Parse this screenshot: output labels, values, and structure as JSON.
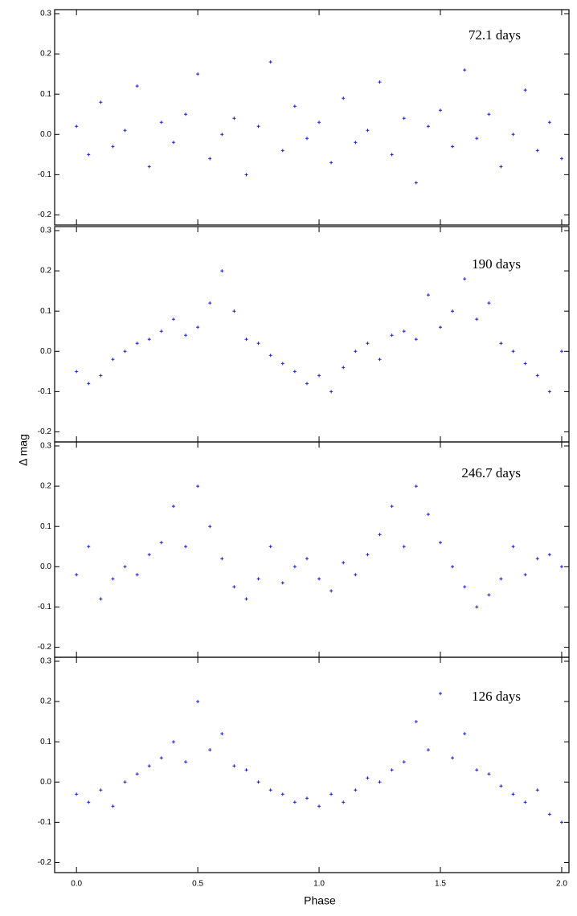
{
  "chart_data": [
    {
      "type": "scatter",
      "annotation": "72.1 days",
      "color": "#1a1adc",
      "x": [
        0,
        0.05,
        0.1,
        0.15,
        0.2,
        0.25,
        0.3,
        0.35,
        0.4,
        0.45,
        0.5,
        0.55,
        0.6,
        0.65,
        0.7,
        0.75,
        0.8,
        0.85,
        0.9,
        0.95,
        1.0,
        1.05,
        1.1,
        1.15,
        1.2,
        1.25,
        1.3,
        1.35,
        1.4,
        1.45,
        1.5,
        1.55,
        1.6,
        1.65,
        1.7,
        1.75,
        1.8,
        1.85,
        1.9,
        1.95,
        2.0
      ],
      "y": [
        0.02,
        -0.05,
        0.08,
        -0.03,
        0.01,
        0.12,
        -0.08,
        0.03,
        -0.02,
        0.05,
        0.15,
        -0.06,
        0.0,
        0.04,
        -0.1,
        0.02,
        0.18,
        -0.04,
        0.07,
        -0.01,
        0.03,
        -0.07,
        0.09,
        -0.02,
        0.01,
        0.13,
        -0.05,
        0.04,
        -0.12,
        0.02,
        0.06,
        -0.03,
        0.16,
        -0.01,
        0.05,
        -0.08,
        0.0,
        0.11,
        -0.04,
        0.03,
        -0.06
      ],
      "xlim": [
        -0.09,
        2.03
      ],
      "ylim": [
        -0.225,
        0.31
      ],
      "yticks": [
        0.3,
        0.2,
        0.1,
        {
          "value": 0,
          "label": "0.0"
        },
        -0.1,
        -0.2
      ]
    },
    {
      "type": "scatter",
      "annotation": "190 days",
      "color": "#1a1adc",
      "x": [
        0,
        0.05,
        0.1,
        0.15,
        0.2,
        0.25,
        0.3,
        0.35,
        0.4,
        0.45,
        0.5,
        0.55,
        0.6,
        0.65,
        0.7,
        0.75,
        0.8,
        0.85,
        0.9,
        0.95,
        1.0,
        1.05,
        1.1,
        1.15,
        1.2,
        1.25,
        1.3,
        1.35,
        1.4,
        1.45,
        1.5,
        1.55,
        1.6,
        1.65,
        1.7,
        1.75,
        1.8,
        1.85,
        1.9,
        1.95,
        2.0
      ],
      "y": [
        -0.05,
        -0.08,
        -0.06,
        -0.02,
        0.0,
        0.02,
        0.03,
        0.05,
        0.08,
        0.04,
        0.06,
        0.12,
        0.2,
        0.1,
        0.03,
        0.02,
        -0.01,
        -0.03,
        -0.05,
        -0.08,
        -0.06,
        -0.1,
        -0.04,
        0.0,
        0.02,
        -0.02,
        0.04,
        0.05,
        0.03,
        0.14,
        0.06,
        0.1,
        0.18,
        0.08,
        0.12,
        0.02,
        0.0,
        -0.03,
        -0.06,
        -0.1,
        0.0
      ],
      "xlim": [
        -0.09,
        2.03
      ],
      "ylim": [
        -0.225,
        0.31
      ],
      "yticks": [
        0.3,
        0.2,
        0.1,
        {
          "value": 0,
          "label": "0.0"
        },
        -0.1,
        -0.2
      ]
    },
    {
      "type": "scatter",
      "annotation": "246.7 days",
      "color": "#1a1adc",
      "x": [
        0,
        0.05,
        0.1,
        0.15,
        0.2,
        0.25,
        0.3,
        0.35,
        0.4,
        0.45,
        0.5,
        0.55,
        0.6,
        0.65,
        0.7,
        0.75,
        0.8,
        0.85,
        0.9,
        0.95,
        1.0,
        1.05,
        1.1,
        1.15,
        1.2,
        1.25,
        1.3,
        1.35,
        1.4,
        1.45,
        1.5,
        1.55,
        1.6,
        1.65,
        1.7,
        1.75,
        1.8,
        1.85,
        1.9,
        1.95,
        2.0
      ],
      "y": [
        -0.02,
        0.05,
        -0.08,
        -0.03,
        0.0,
        -0.02,
        0.03,
        0.06,
        0.15,
        0.05,
        0.2,
        0.1,
        0.02,
        -0.05,
        -0.08,
        -0.03,
        0.05,
        -0.04,
        0.0,
        0.02,
        -0.03,
        -0.06,
        0.01,
        -0.02,
        0.03,
        0.08,
        0.15,
        0.05,
        0.2,
        0.13,
        0.06,
        0.0,
        -0.05,
        -0.1,
        -0.07,
        -0.03,
        0.05,
        -0.02,
        0.02,
        0.03,
        0.0
      ],
      "xlim": [
        -0.09,
        2.03
      ],
      "ylim": [
        -0.225,
        0.31
      ],
      "yticks": [
        0.3,
        0.2,
        0.1,
        {
          "value": 0,
          "label": "0.0"
        },
        -0.1,
        -0.2
      ]
    },
    {
      "type": "scatter",
      "annotation": "126 days",
      "color": "#1a1adc",
      "x": [
        0,
        0.05,
        0.1,
        0.15,
        0.2,
        0.25,
        0.3,
        0.35,
        0.4,
        0.45,
        0.5,
        0.55,
        0.6,
        0.65,
        0.7,
        0.75,
        0.8,
        0.85,
        0.9,
        0.95,
        1.0,
        1.05,
        1.1,
        1.15,
        1.2,
        1.25,
        1.3,
        1.35,
        1.4,
        1.45,
        1.5,
        1.55,
        1.6,
        1.65,
        1.7,
        1.75,
        1.8,
        1.85,
        1.9,
        1.95,
        2.0
      ],
      "y": [
        -0.03,
        -0.05,
        -0.02,
        -0.06,
        0.0,
        0.02,
        0.04,
        0.06,
        0.1,
        0.05,
        0.2,
        0.08,
        0.12,
        0.04,
        0.03,
        0.0,
        -0.02,
        -0.03,
        -0.05,
        -0.04,
        -0.06,
        -0.03,
        -0.05,
        -0.02,
        0.01,
        0.0,
        0.03,
        0.05,
        0.15,
        0.08,
        0.22,
        0.06,
        0.12,
        0.03,
        0.02,
        -0.01,
        -0.03,
        -0.05,
        -0.02,
        -0.08,
        -0.1
      ],
      "xlim": [
        -0.09,
        2.03
      ],
      "ylim": [
        -0.225,
        0.31
      ],
      "yticks": [
        0.3,
        0.2,
        0.1,
        {
          "value": 0,
          "label": "0.0"
        },
        -0.1,
        -0.2
      ],
      "xticks": [
        {
          "value": 0,
          "label": "0.0"
        },
        0.5,
        {
          "value": 1,
          "label": "1.0"
        },
        1.5,
        {
          "value": 2,
          "label": "2.0"
        }
      ],
      "xlabel": "Phase",
      "ylabel": "Δ mag"
    }
  ]
}
